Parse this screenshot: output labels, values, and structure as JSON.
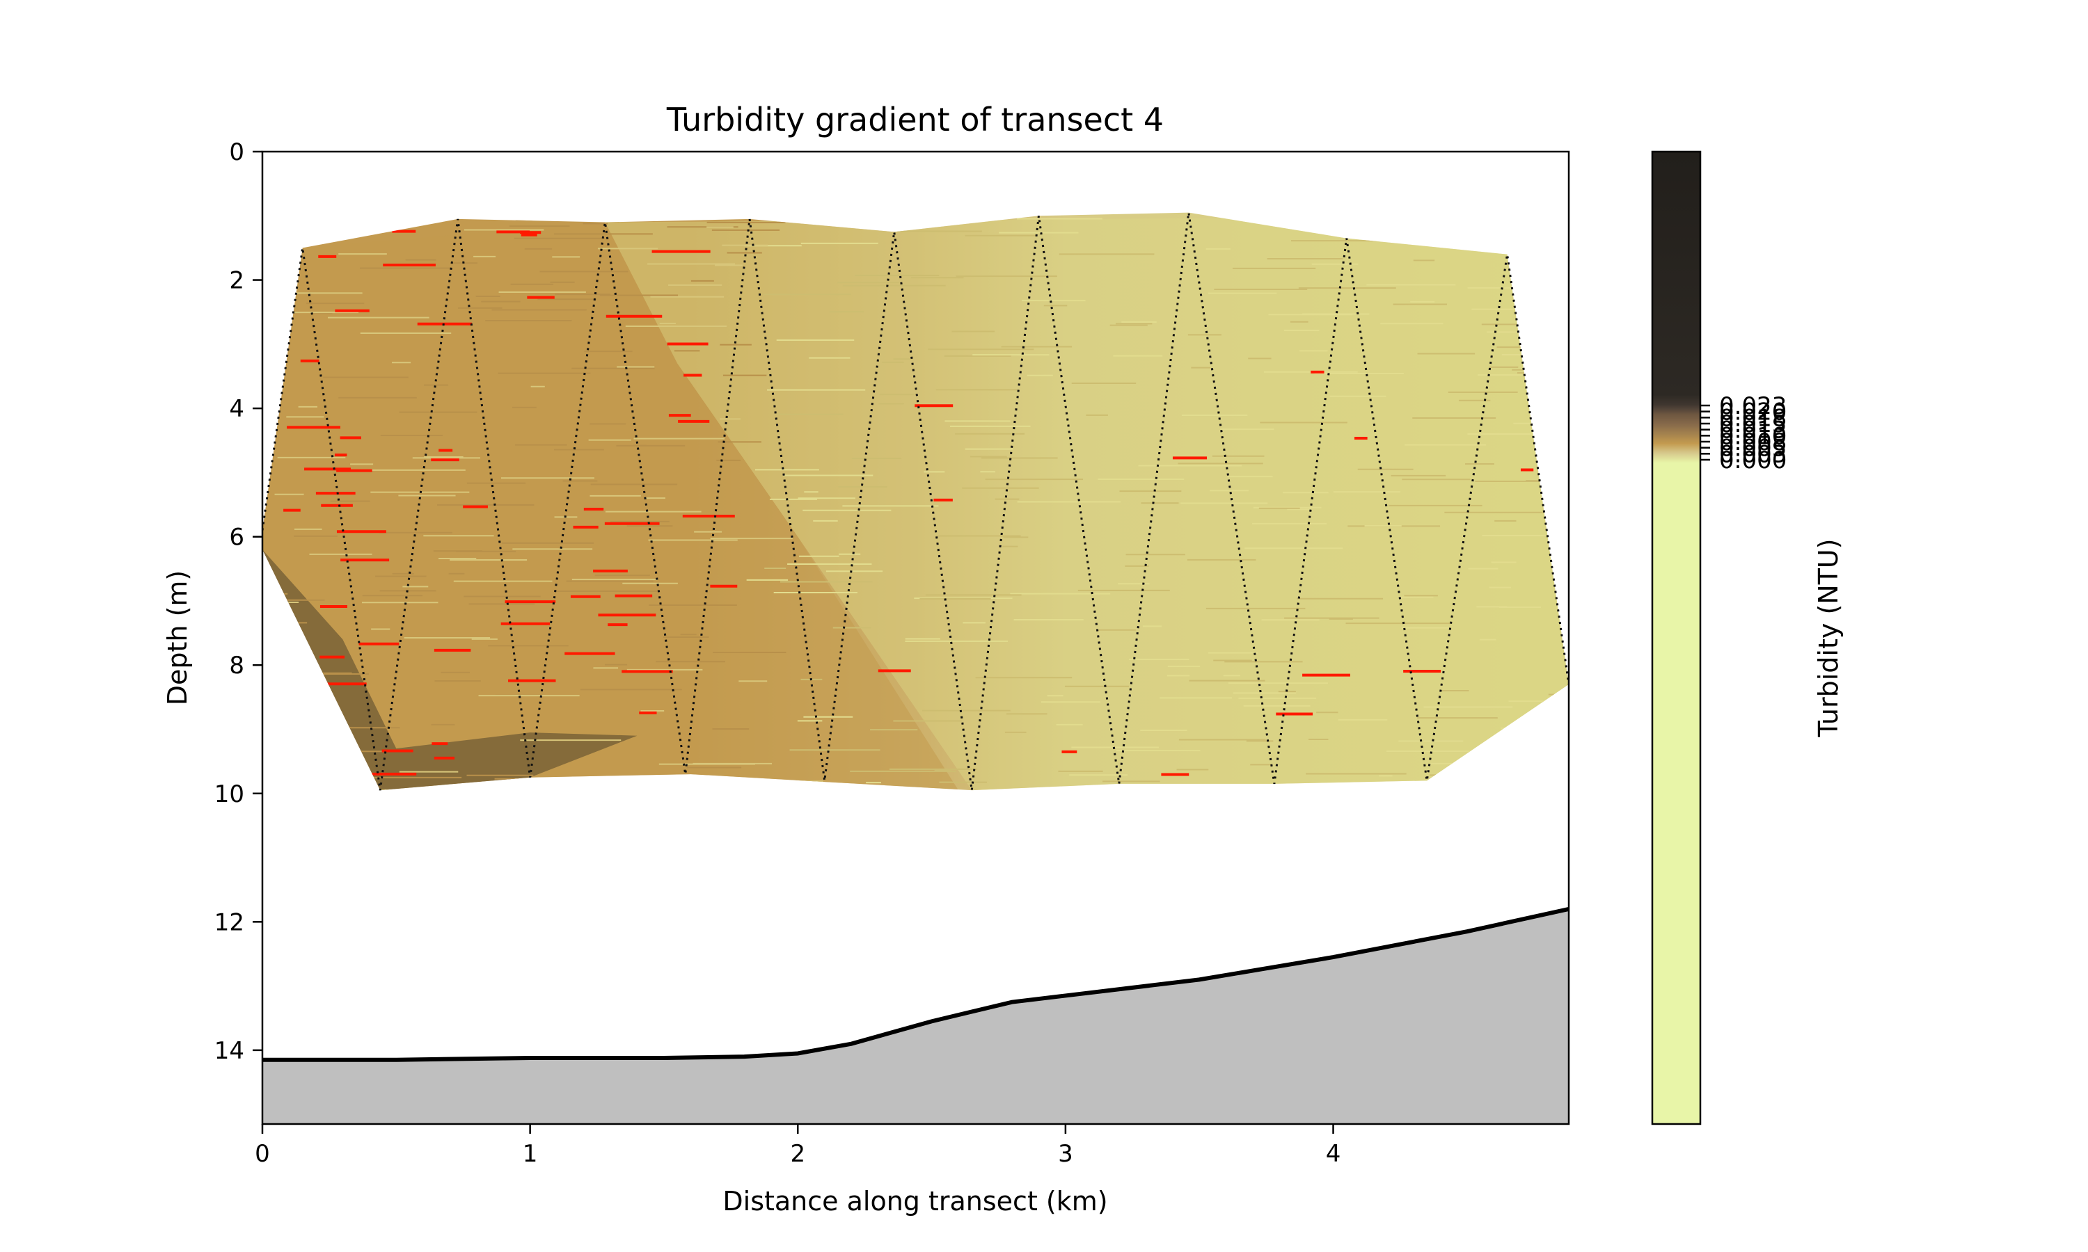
{
  "chart_data": {
    "type": "heatmap",
    "title": "Turbidity gradient of transect 4",
    "xlabel": "Distance along transect (km)",
    "ylabel": "Depth (m)",
    "xlim": [
      0,
      4.88
    ],
    "ylim": [
      15.15,
      0
    ],
    "xticks": [
      "0",
      "1",
      "2",
      "3",
      "4"
    ],
    "yticks": [
      "0",
      "2",
      "4",
      "6",
      "8",
      "10",
      "12",
      "14"
    ],
    "grid": false,
    "colorbar": {
      "label": "Turbidity (NTU)",
      "tick_labels": [
        "0.000",
        "0.003",
        "0.005",
        "0.008",
        "0.010",
        "0.013",
        "0.015",
        "0.018",
        "0.020",
        "0.023"
      ],
      "colors": [
        "#e8f5a8",
        "#d6c98c",
        "#c39a4f",
        "#a3814e",
        "#86694a",
        "#6d5640",
        "#544539",
        "#3f362f",
        "#2d2924",
        "#221f1b"
      ]
    },
    "envelope": {
      "top_edge": [
        [
          0.15,
          1.5
        ],
        [
          0.73,
          1.05
        ],
        [
          1.28,
          1.1
        ],
        [
          1.82,
          1.05
        ],
        [
          2.36,
          1.25
        ],
        [
          2.9,
          1.0
        ],
        [
          3.46,
          0.95
        ],
        [
          4.05,
          1.35
        ],
        [
          4.65,
          1.6
        ]
      ],
      "bottom_edge": [
        [
          0.0,
          6.2
        ],
        [
          0.44,
          9.95
        ],
        [
          1.0,
          9.75
        ],
        [
          1.6,
          9.7
        ],
        [
          2.65,
          9.95
        ],
        [
          3.2,
          9.85
        ],
        [
          3.78,
          9.85
        ],
        [
          4.35,
          9.8
        ],
        [
          4.88,
          8.3
        ]
      ]
    },
    "profile_path": [
      [
        0.0,
        5.9
      ],
      [
        0.15,
        1.5
      ],
      [
        0.44,
        9.95
      ],
      [
        0.73,
        1.05
      ],
      [
        1.0,
        9.75
      ],
      [
        1.28,
        1.1
      ],
      [
        1.58,
        9.7
      ],
      [
        1.82,
        1.05
      ],
      [
        2.1,
        9.8
      ],
      [
        2.36,
        1.25
      ],
      [
        2.65,
        9.95
      ],
      [
        2.9,
        1.0
      ],
      [
        3.2,
        9.85
      ],
      [
        3.46,
        0.95
      ],
      [
        3.78,
        9.85
      ],
      [
        4.05,
        1.35
      ],
      [
        4.35,
        9.8
      ],
      [
        4.65,
        1.6
      ],
      [
        4.88,
        8.3
      ]
    ],
    "bathymetry": {
      "x": [
        0.0,
        0.5,
        1.0,
        1.5,
        1.8,
        2.0,
        2.2,
        2.5,
        2.8,
        3.0,
        3.5,
        4.0,
        4.5,
        4.88
      ],
      "depth": [
        14.15,
        14.15,
        14.12,
        14.12,
        14.1,
        14.05,
        13.9,
        13.55,
        13.25,
        13.15,
        12.9,
        12.55,
        12.15,
        11.8
      ]
    },
    "zones": [
      {
        "name": "dark-near-shore",
        "x": [
          0.0,
          1.4
        ],
        "depth": [
          5.5,
          10.0
        ]
      },
      {
        "name": "brown-west",
        "x": [
          0.0,
          2.7
        ],
        "depth": [
          1.0,
          10.0
        ]
      },
      {
        "name": "pale-east",
        "x": [
          1.3,
          4.88
        ],
        "depth": [
          1.0,
          10.0
        ]
      }
    ]
  }
}
